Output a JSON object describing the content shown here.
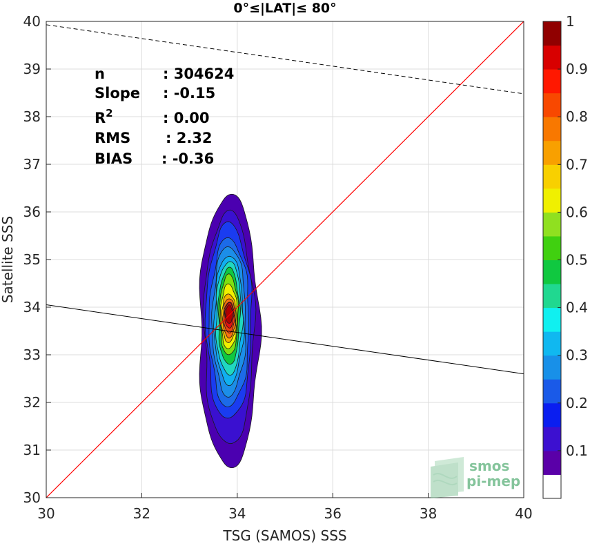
{
  "chart_data": {
    "type": "heatmap",
    "title": "0°≤|LAT|≤ 80°",
    "xlabel": "TSG (SAMOS) SSS",
    "ylabel": "Satellite SSS",
    "xlim": [
      30,
      40
    ],
    "ylim": [
      30,
      40
    ],
    "xticks": [
      "30",
      "32",
      "34",
      "36",
      "38",
      "40"
    ],
    "yticks": [
      "30",
      "31",
      "32",
      "33",
      "34",
      "35",
      "36",
      "37",
      "38",
      "39",
      "40"
    ],
    "grid": true,
    "stats": [
      {
        "label": "n",
        "value": ": 304624"
      },
      {
        "label": "Slope",
        "value": ": -0.15"
      },
      {
        "label": "R",
        "sup": "2",
        "value": ": 0.00"
      },
      {
        "label": "RMS",
        "value": ": 2.32"
      },
      {
        "label": "BIAS",
        "value": ": -0.36"
      }
    ],
    "one_to_one_line": {
      "x": [
        30,
        40
      ],
      "y": [
        30,
        40
      ],
      "color": "#ff0000"
    },
    "regression_line": {
      "x": [
        30,
        40
      ],
      "y": [
        34.05,
        32.6
      ],
      "color": "#000000"
    },
    "dashed_line": {
      "x": [
        30,
        40
      ],
      "y": [
        39.93,
        38.48
      ],
      "color": "#000000"
    },
    "density_contours": {
      "center": [
        33.82,
        33.75
      ],
      "levels": [
        {
          "level": 0.05,
          "x": [
            33.2,
            34.45
          ],
          "y": [
            30.55,
            36.45
          ],
          "color": "#4b00b0"
        },
        {
          "level": 0.1,
          "x": [
            33.3,
            34.35
          ],
          "y": [
            31.0,
            36.05
          ],
          "color": "#3a10d0"
        },
        {
          "level": 0.15,
          "x": [
            33.35,
            34.3
          ],
          "y": [
            31.55,
            35.8
          ],
          "color": "#1a3cf0"
        },
        {
          "level": 0.2,
          "x": [
            33.42,
            34.25
          ],
          "y": [
            31.85,
            35.5
          ],
          "color": "#1c6be8"
        },
        {
          "level": 0.25,
          "x": [
            33.48,
            34.18
          ],
          "y": [
            32.1,
            35.35
          ],
          "color": "#1c8ee8"
        },
        {
          "level": 0.35,
          "x": [
            33.52,
            34.13
          ],
          "y": [
            32.35,
            35.15
          ],
          "color": "#10b0f0"
        },
        {
          "level": 0.4,
          "x": [
            33.55,
            34.1
          ],
          "y": [
            32.55,
            35.0
          ],
          "color": "#20d8c0"
        },
        {
          "level": 0.5,
          "x": [
            33.6,
            34.05
          ],
          "y": [
            32.75,
            34.85
          ],
          "color": "#10c840"
        },
        {
          "level": 0.55,
          "x": [
            33.63,
            34.02
          ],
          "y": [
            32.95,
            34.7
          ],
          "color": "#80e010"
        },
        {
          "level": 0.6,
          "x": [
            33.65,
            34.0
          ],
          "y": [
            33.1,
            34.5
          ],
          "color": "#f0f000"
        },
        {
          "level": 0.7,
          "x": [
            33.67,
            33.98
          ],
          "y": [
            33.25,
            34.3
          ],
          "color": "#f8b000"
        },
        {
          "level": 0.8,
          "x": [
            33.7,
            33.96
          ],
          "y": [
            33.35,
            34.2
          ],
          "color": "#f87010"
        },
        {
          "level": 0.85,
          "x": [
            33.72,
            33.94
          ],
          "y": [
            33.45,
            34.12
          ],
          "color": "#f04010"
        },
        {
          "level": 0.9,
          "x": [
            33.74,
            33.92
          ],
          "y": [
            33.55,
            34.1
          ],
          "color": "#e01010"
        },
        {
          "level": 0.95,
          "x": [
            33.76,
            33.9
          ],
          "y": [
            33.65,
            34.05
          ],
          "color": "#b00000"
        }
      ]
    },
    "colorbar": {
      "ticks": [
        "0.1",
        "0.2",
        "0.3",
        "0.4",
        "0.5",
        "0.6",
        "0.7",
        "0.8",
        "0.9",
        "1"
      ],
      "colors": [
        "#ffffff",
        "#5a00a8",
        "#3c10d0",
        "#0a1ef0",
        "#1a5ae8",
        "#1890e8",
        "#10b8f0",
        "#10f0f0",
        "#20d890",
        "#10c840",
        "#40d010",
        "#90e020",
        "#f0f000",
        "#f8d000",
        "#f8a000",
        "#f87800",
        "#f84800",
        "#ff1800",
        "#d80000",
        "#900000"
      ]
    }
  },
  "logo": {
    "line1": "smos",
    "line2": "pi-mep",
    "color": "#6fba8a"
  }
}
